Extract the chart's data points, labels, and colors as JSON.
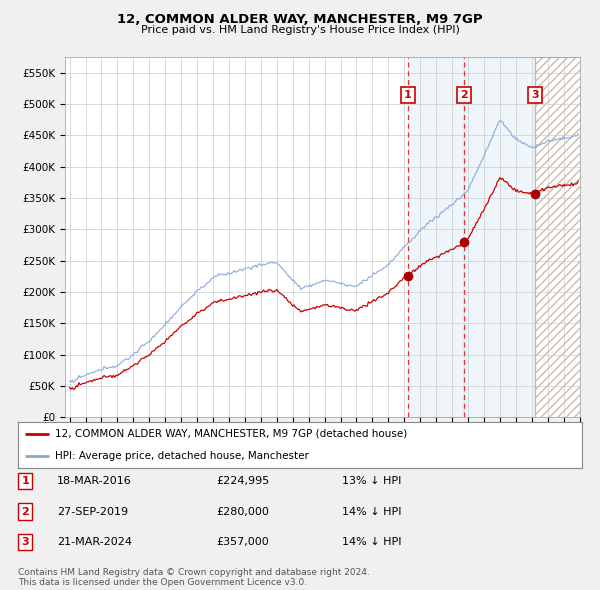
{
  "title": "12, COMMON ALDER WAY, MANCHESTER, M9 7GP",
  "subtitle": "Price paid vs. HM Land Registry's House Price Index (HPI)",
  "ylim": [
    0,
    575000
  ],
  "yticks": [
    0,
    50000,
    100000,
    150000,
    200000,
    250000,
    300000,
    350000,
    400000,
    450000,
    500000,
    550000
  ],
  "ytick_labels": [
    "£0",
    "£50K",
    "£100K",
    "£150K",
    "£200K",
    "£250K",
    "£300K",
    "£350K",
    "£400K",
    "£450K",
    "£500K",
    "£550K"
  ],
  "x_start_year": 1995,
  "x_end_year": 2027,
  "sale_prices": [
    224995,
    280000,
    357000
  ],
  "sale_labels": [
    "1",
    "2",
    "3"
  ],
  "sale_decimal": [
    2016.208,
    2019.742,
    2024.217
  ],
  "sale_info": [
    {
      "label": "1",
      "date": "18-MAR-2016",
      "price": "£224,995",
      "hpi": "13% ↓ HPI"
    },
    {
      "label": "2",
      "date": "27-SEP-2019",
      "price": "£280,000",
      "hpi": "14% ↓ HPI"
    },
    {
      "label": "3",
      "date": "21-MAR-2024",
      "price": "£357,000",
      "hpi": "14% ↓ HPI"
    }
  ],
  "legend_entries": [
    {
      "color": "#cc0000",
      "label": "12, COMMON ALDER WAY, MANCHESTER, M9 7GP (detached house)"
    },
    {
      "color": "#6699cc",
      "label": "HPI: Average price, detached house, Manchester"
    }
  ],
  "footnote": "Contains HM Land Registry data © Crown copyright and database right 2024.\nThis data is licensed under the Open Government Licence v3.0.",
  "bg_color": "#f0f0f0",
  "plot_bg_color": "#ffffff",
  "grid_color": "#cccccc",
  "sale_line_color": "#cc0000",
  "hpi_line_color": "#88aadd",
  "hpi_line_color2": "#aabbdd",
  "span_color": "#ddeeff",
  "hatch_color": "#ccbbaa"
}
